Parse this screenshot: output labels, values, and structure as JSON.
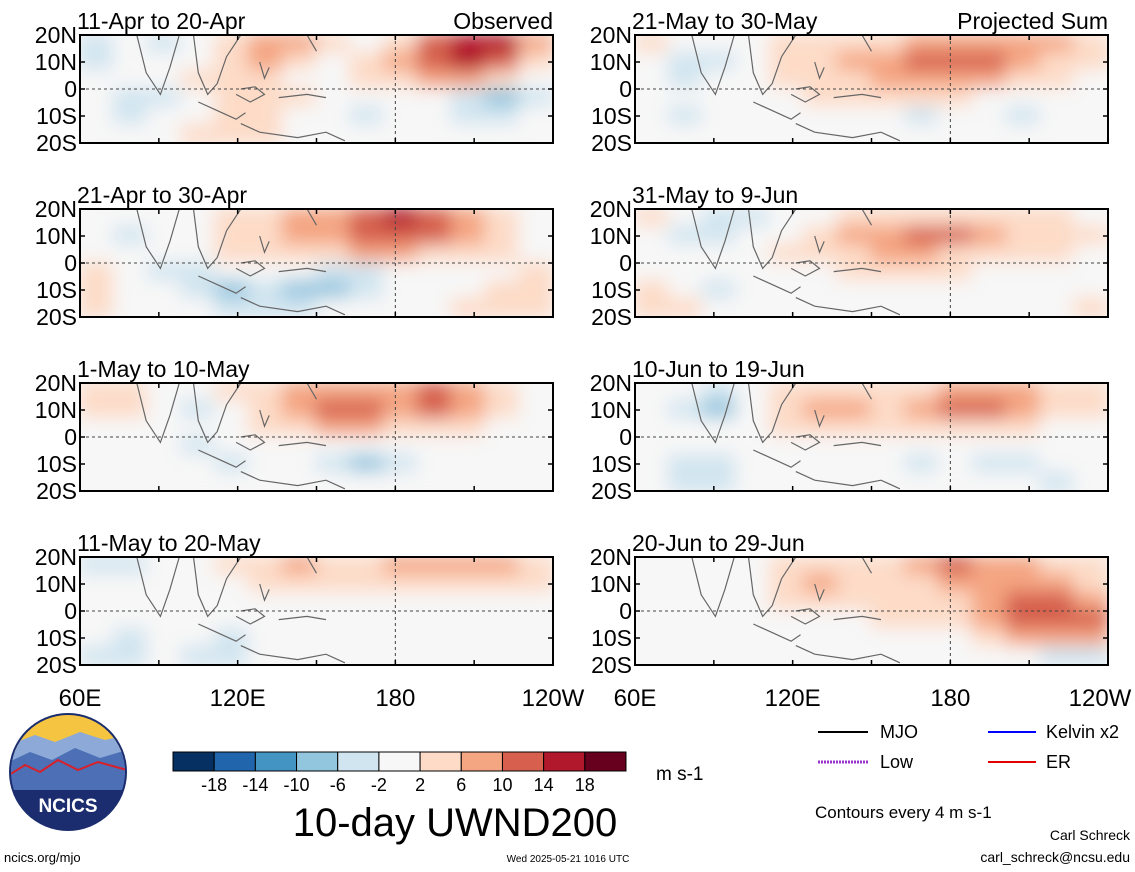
{
  "figure": {
    "title": "10-day UWND200",
    "colorbar_units": "m s-1",
    "colorbar_ticks": [
      "-18",
      "-14",
      "-10",
      "-6",
      "-2",
      "2",
      "6",
      "10",
      "14",
      "18"
    ],
    "colorbar_colors": [
      "#053061",
      "#2166ac",
      "#4393c3",
      "#92c5de",
      "#d1e5f0",
      "#f7f7f7",
      "#fddbc7",
      "#f4a582",
      "#d6604d",
      "#b2182b",
      "#67001f"
    ],
    "legend": [
      {
        "label": "MJO",
        "color": "#000000",
        "style": "solid"
      },
      {
        "label": "Kelvin x2",
        "color": "#0000ff",
        "style": "solid"
      },
      {
        "label": "Low",
        "color": "#9933cc",
        "style": "dotted"
      },
      {
        "label": "ER",
        "color": "#e00000",
        "style": "solid"
      }
    ],
    "contour_note": "Contours every 4 m s-1",
    "footer_left": "ncics.org/mjo",
    "footer_center": "Wed 2025-05-21 1016 UTC",
    "footer_right_name": "Carl Schreck",
    "footer_right_email": "carl_schreck@ncsu.edu",
    "logo_text": "NCICS",
    "x_ticks": [
      "60E",
      "120E",
      "180",
      "120W"
    ],
    "y_ticks": [
      "20N",
      "10N",
      "0",
      "10S",
      "20S"
    ]
  },
  "chart_data": [
    {
      "type": "heatmap",
      "title": "11-Apr to 20-Apr",
      "tag": "Observed",
      "xlim": [
        "60E",
        "120W"
      ],
      "ylim": [
        "20S",
        "20N"
      ],
      "values": [
        [
          -6,
          -2,
          -6,
          -2,
          2,
          6,
          6,
          2,
          -2,
          2,
          10,
          14,
          14,
          6
        ],
        [
          -4,
          -2,
          -2,
          -2,
          2,
          6,
          2,
          -2,
          2,
          6,
          10,
          14,
          10,
          2
        ],
        [
          -2,
          -2,
          -2,
          2,
          2,
          2,
          -2,
          -2,
          2,
          2,
          6,
          6,
          2,
          -2
        ],
        [
          -2,
          -6,
          -6,
          -2,
          2,
          2,
          2,
          -2,
          -2,
          -2,
          -2,
          -6,
          -10,
          -6
        ],
        [
          -2,
          -6,
          -2,
          -2,
          2,
          2,
          -2,
          -2,
          -6,
          -2,
          -2,
          -6,
          -6,
          -2
        ],
        [
          -2,
          -2,
          -2,
          2,
          2,
          2,
          -2,
          -2,
          -2,
          -2,
          -2,
          -2,
          -2,
          -2
        ]
      ]
    },
    {
      "type": "heatmap",
      "title": "21-May to 30-May",
      "tag": "Projected Sum",
      "xlim": [
        "60E",
        "120W"
      ],
      "ylim": [
        "20S",
        "20N"
      ],
      "values": [
        [
          2,
          -2,
          -2,
          -2,
          2,
          2,
          2,
          2,
          6,
          6,
          6,
          6,
          6,
          2
        ],
        [
          -2,
          -6,
          -6,
          -2,
          2,
          2,
          6,
          6,
          10,
          10,
          10,
          6,
          2,
          2
        ],
        [
          -2,
          -6,
          -2,
          -2,
          2,
          2,
          2,
          6,
          6,
          6,
          6,
          2,
          2,
          -2
        ],
        [
          -2,
          -2,
          -2,
          -2,
          -2,
          2,
          2,
          2,
          2,
          2,
          -2,
          -2,
          -2,
          -2
        ],
        [
          -2,
          -6,
          -2,
          -2,
          -2,
          -2,
          -2,
          -2,
          -6,
          -2,
          -2,
          -6,
          -2,
          -2
        ],
        [
          -2,
          -2,
          -2,
          -2,
          -2,
          -2,
          -2,
          -2,
          -2,
          -2,
          -2,
          -2,
          -2,
          -2
        ]
      ]
    },
    {
      "type": "heatmap",
      "title": "21-Apr to 30-Apr",
      "tag": "",
      "xlim": [
        "60E",
        "120W"
      ],
      "ylim": [
        "20S",
        "20N"
      ],
      "values": [
        [
          -2,
          -2,
          -2,
          -2,
          2,
          2,
          6,
          6,
          10,
          14,
          10,
          6,
          2,
          -2
        ],
        [
          -2,
          -6,
          -2,
          -2,
          2,
          2,
          6,
          6,
          10,
          10,
          10,
          6,
          2,
          -2
        ],
        [
          -2,
          -2,
          -2,
          -2,
          2,
          2,
          2,
          2,
          6,
          6,
          2,
          2,
          2,
          -2
        ],
        [
          2,
          -2,
          -6,
          -6,
          -2,
          -2,
          -2,
          -6,
          -6,
          -2,
          -2,
          -2,
          -2,
          2
        ],
        [
          2,
          -2,
          -2,
          -6,
          -10,
          -6,
          -10,
          -10,
          -6,
          -2,
          -2,
          -2,
          2,
          2
        ],
        [
          2,
          -2,
          -2,
          -2,
          -6,
          -6,
          -6,
          -2,
          -2,
          -2,
          -2,
          2,
          2,
          2
        ]
      ]
    },
    {
      "type": "heatmap",
      "title": "31-May to 9-Jun",
      "tag": "",
      "xlim": [
        "60E",
        "120W"
      ],
      "ylim": [
        "20S",
        "20N"
      ],
      "values": [
        [
          2,
          -2,
          -6,
          -6,
          -2,
          -2,
          2,
          2,
          2,
          2,
          2,
          2,
          2,
          -2
        ],
        [
          -2,
          -6,
          -6,
          -2,
          -2,
          2,
          6,
          6,
          10,
          10,
          6,
          2,
          2,
          2
        ],
        [
          -2,
          -2,
          -2,
          -2,
          2,
          2,
          2,
          6,
          6,
          2,
          2,
          2,
          2,
          -2
        ],
        [
          -2,
          -2,
          -2,
          -2,
          -2,
          -2,
          2,
          2,
          2,
          2,
          -2,
          -2,
          -2,
          -2
        ],
        [
          2,
          -2,
          -6,
          -2,
          -2,
          -2,
          -2,
          -2,
          -2,
          -2,
          -2,
          -2,
          -2,
          -2
        ],
        [
          2,
          2,
          -2,
          -2,
          -2,
          -2,
          -2,
          -2,
          -2,
          -2,
          -2,
          -2,
          -2,
          2
        ]
      ]
    },
    {
      "type": "heatmap",
      "title": "1-May to 10-May",
      "tag": "",
      "xlim": [
        "60E",
        "120W"
      ],
      "ylim": [
        "20S",
        "20N"
      ],
      "values": [
        [
          2,
          2,
          -2,
          -2,
          2,
          2,
          6,
          6,
          6,
          6,
          10,
          6,
          2,
          -2
        ],
        [
          2,
          2,
          -2,
          -6,
          -2,
          2,
          6,
          10,
          10,
          6,
          10,
          6,
          2,
          -2
        ],
        [
          -2,
          -2,
          -2,
          -2,
          -2,
          2,
          2,
          6,
          6,
          2,
          2,
          2,
          -2,
          -2
        ],
        [
          -2,
          -2,
          -2,
          -6,
          -2,
          -2,
          -2,
          -2,
          -2,
          -2,
          -2,
          -2,
          -2,
          -2
        ],
        [
          -2,
          -2,
          -2,
          -2,
          -6,
          -2,
          -2,
          -6,
          -10,
          -6,
          -2,
          -2,
          -2,
          -2
        ],
        [
          -2,
          -2,
          -2,
          -2,
          -2,
          -2,
          -2,
          -2,
          -2,
          -2,
          -2,
          -2,
          -2,
          -2
        ]
      ]
    },
    {
      "type": "heatmap",
      "title": "10-Jun to 19-Jun",
      "tag": "",
      "xlim": [
        "60E",
        "120W"
      ],
      "ylim": [
        "20S",
        "20N"
      ],
      "values": [
        [
          -2,
          -2,
          -6,
          -2,
          2,
          2,
          2,
          2,
          2,
          6,
          6,
          6,
          2,
          2
        ],
        [
          -2,
          -6,
          -10,
          -2,
          2,
          6,
          6,
          2,
          6,
          10,
          10,
          6,
          2,
          2
        ],
        [
          -2,
          -2,
          -2,
          -2,
          2,
          2,
          2,
          2,
          2,
          2,
          2,
          2,
          -2,
          -2
        ],
        [
          -2,
          -2,
          -2,
          -2,
          -2,
          -2,
          -2,
          -2,
          -2,
          -2,
          -2,
          -2,
          -2,
          -2
        ],
        [
          -2,
          -6,
          -6,
          -2,
          -2,
          -2,
          -2,
          -2,
          -6,
          -2,
          -6,
          -6,
          -2,
          -2
        ],
        [
          -2,
          -6,
          -6,
          -2,
          -2,
          -2,
          -2,
          -2,
          -2,
          -2,
          -2,
          -2,
          -6,
          -2
        ]
      ]
    },
    {
      "type": "heatmap",
      "title": "11-May to 20-May",
      "tag": "",
      "xlim": [
        "60E",
        "120W"
      ],
      "ylim": [
        "20S",
        "20N"
      ],
      "values": [
        [
          -6,
          -6,
          -2,
          -2,
          2,
          2,
          6,
          2,
          2,
          6,
          6,
          6,
          6,
          2
        ],
        [
          -2,
          -2,
          -2,
          -2,
          -2,
          2,
          2,
          2,
          2,
          2,
          2,
          2,
          2,
          2
        ],
        [
          -2,
          -2,
          -2,
          -2,
          -2,
          -2,
          -2,
          -2,
          -2,
          -2,
          -2,
          -2,
          -2,
          -2
        ],
        [
          -2,
          -2,
          -2,
          -2,
          -2,
          -2,
          -2,
          -2,
          -2,
          -2,
          -2,
          -2,
          -2,
          -2
        ],
        [
          -2,
          -6,
          -2,
          -2,
          -6,
          -2,
          -2,
          -2,
          -2,
          -2,
          -2,
          -2,
          -2,
          -2
        ],
        [
          -6,
          -6,
          -2,
          -6,
          -6,
          -2,
          -2,
          -2,
          -2,
          -2,
          -2,
          -2,
          -2,
          -2
        ]
      ]
    },
    {
      "type": "heatmap",
      "title": "20-Jun to 29-Jun",
      "tag": "",
      "xlim": [
        "60E",
        "120W"
      ],
      "ylim": [
        "20S",
        "20N"
      ],
      "values": [
        [
          -2,
          -2,
          -2,
          -2,
          2,
          2,
          2,
          2,
          6,
          10,
          6,
          6,
          2,
          2
        ],
        [
          -2,
          -2,
          -2,
          -2,
          2,
          6,
          2,
          2,
          2,
          6,
          6,
          6,
          6,
          2
        ],
        [
          -2,
          -2,
          -2,
          -2,
          2,
          2,
          2,
          2,
          2,
          2,
          6,
          10,
          10,
          6
        ],
        [
          -2,
          -2,
          -2,
          -2,
          -2,
          -2,
          -2,
          2,
          2,
          2,
          6,
          10,
          10,
          10
        ],
        [
          -2,
          -2,
          -2,
          -2,
          -2,
          -2,
          -2,
          -2,
          -2,
          -2,
          2,
          6,
          6,
          6
        ],
        [
          -2,
          -2,
          -2,
          -2,
          -2,
          -2,
          -2,
          -2,
          -2,
          -2,
          -2,
          -2,
          -6,
          -6
        ]
      ]
    }
  ]
}
